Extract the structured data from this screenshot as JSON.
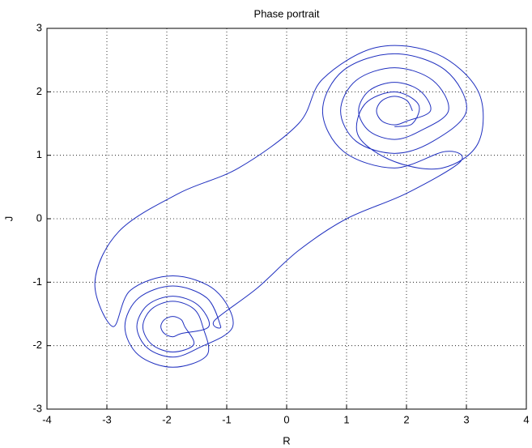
{
  "chart_data": {
    "type": "line",
    "title": "Phase portrait",
    "x_label": "R",
    "y_label": "J",
    "color": "#1f2fbf",
    "grid": true,
    "xlim": [
      -4,
      4
    ],
    "ylim": [
      -3,
      3
    ],
    "xticks": [
      -4,
      -3,
      -2,
      -1,
      0,
      1,
      2,
      3,
      4
    ],
    "yticks": [
      -3,
      -2,
      -1,
      0,
      1,
      2,
      3
    ],
    "x": [
      2.1,
      2.01,
      1.8,
      1.59,
      1.5,
      1.59,
      1.8,
      2.01,
      2.4,
      2.22,
      1.8,
      1.38,
      1.2,
      1.38,
      1.8,
      2.22,
      2.7,
      2.44,
      1.8,
      1.16,
      0.9,
      1.16,
      1.8,
      2.44,
      3.0,
      2.65,
      1.8,
      0.95,
      0.6,
      0.95,
      1.8,
      2.65,
      2.9,
      2.0,
      1.0,
      0.2,
      -0.5,
      -1.2,
      -1.1,
      -1.33,
      -1.9,
      -2.47,
      -2.7,
      -2.47,
      -1.9,
      -1.33,
      -1.4,
      -1.55,
      -1.9,
      -2.25,
      -2.4,
      -2.25,
      -1.9,
      -1.55,
      -1.7,
      -1.76,
      -1.9,
      -2.04,
      -2.1,
      -2.04,
      -1.9,
      -1.76,
      -1.3,
      -1.48,
      -1.9,
      -2.32,
      -2.5,
      -2.32,
      -1.9,
      -1.48,
      -0.9,
      -1.19,
      -1.9,
      -2.61,
      -2.9,
      -3.2,
      -2.8,
      -1.8,
      -0.8,
      0.2,
      0.6,
      1.5,
      2.5,
      3.2,
      3.2,
      2.6,
      1.8,
      1.2,
      1.3,
      1.8,
      2.2,
      2.1,
      1.8
    ],
    "values": [
      1.7,
      1.86,
      1.93,
      1.86,
      1.7,
      1.54,
      1.48,
      1.54,
      1.7,
      2.02,
      2.15,
      2.02,
      1.7,
      1.38,
      1.25,
      1.38,
      1.7,
      2.18,
      2.38,
      2.18,
      1.7,
      1.22,
      1.03,
      1.22,
      1.7,
      2.34,
      2.6,
      2.34,
      1.7,
      1.06,
      0.8,
      1.06,
      0.9,
      0.4,
      0.0,
      -0.5,
      -1.1,
      -1.6,
      -1.7,
      -1.25,
      -1.06,
      -1.25,
      -1.7,
      -2.15,
      -2.34,
      -2.15,
      -1.7,
      -1.42,
      -1.3,
      -1.42,
      -1.7,
      -1.98,
      -2.1,
      -1.98,
      -1.7,
      -1.59,
      -1.54,
      -1.59,
      -1.7,
      -1.81,
      -1.86,
      -1.81,
      -1.7,
      -1.36,
      -1.22,
      -1.36,
      -1.7,
      -2.04,
      -2.18,
      -2.04,
      -1.7,
      -1.13,
      -0.9,
      -1.13,
      -1.7,
      -1.0,
      -0.2,
      0.4,
      0.8,
      1.5,
      2.2,
      2.7,
      2.6,
      2.0,
      1.2,
      0.8,
      0.9,
      1.3,
      1.8,
      2.0,
      1.8,
      1.5,
      1.45
    ]
  }
}
